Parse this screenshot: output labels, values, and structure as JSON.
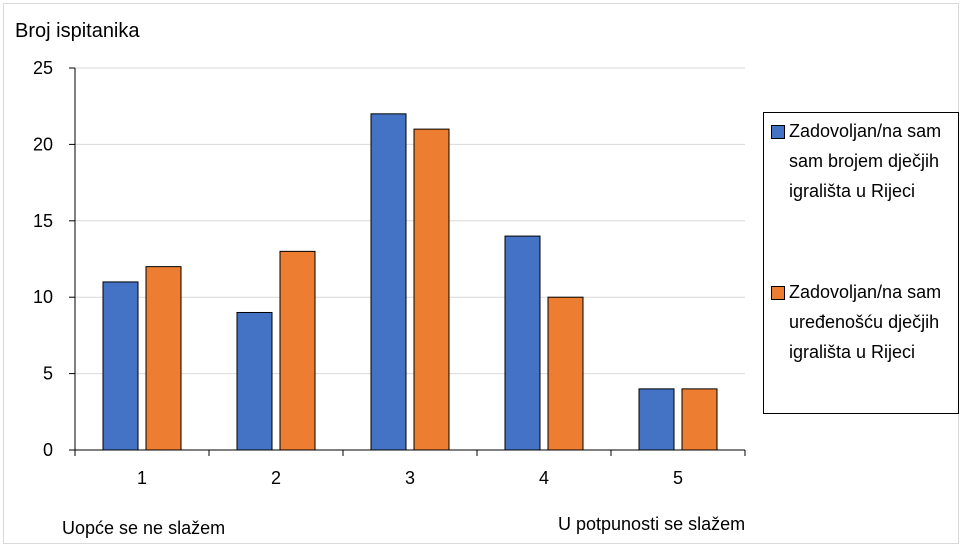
{
  "chart_data": {
    "type": "bar",
    "title": "",
    "xlabel": "",
    "ylabel": "Broj ispitanika",
    "categories": [
      "1",
      "2",
      "3",
      "4",
      "5"
    ],
    "series": [
      {
        "name": "Zadovoljan/na sam sam brojem dječjih igrališta u Rijeci",
        "values": [
          11,
          9,
          22,
          14,
          4
        ],
        "color": "#4472c4"
      },
      {
        "name": "Zadovoljan/na sam uređenošću dječjih igrališta u Rijeci",
        "values": [
          12,
          13,
          21,
          10,
          4
        ],
        "color": "#ed7d31"
      }
    ],
    "ylim": [
      0,
      25
    ],
    "yticks": [
      0,
      5,
      10,
      15,
      20,
      25
    ],
    "grid": true,
    "legend_position": "right",
    "annotations": [
      "Uopće se ne slažem",
      "U potpunosti se slažem"
    ]
  }
}
